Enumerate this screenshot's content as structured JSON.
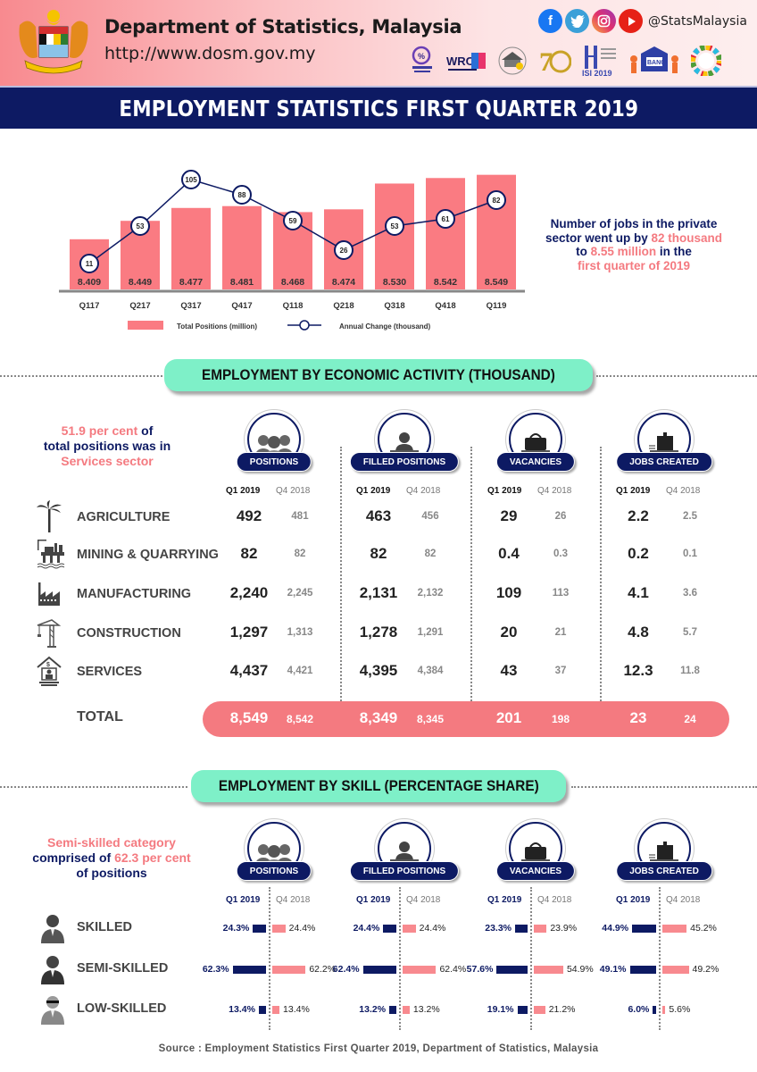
{
  "header": {
    "dept_name": "Department of Statistics, Malaysia",
    "url": "http://www.dosm.gov.my",
    "social_handle": "@StatsMalaysia",
    "social_icons": [
      "facebook-icon",
      "twitter-icon",
      "instagram-icon",
      "youtube-icon"
    ],
    "logos": [
      "Hari Statistik Negara",
      "WRC 2019",
      "MyCensus",
      "70 years",
      "ISI 2019",
      "Banci Malaysia",
      "SDG"
    ],
    "title": "EMPLOYMENT STATISTICS FIRST QUARTER 2019"
  },
  "colors": {
    "navy": "#0d1a63",
    "pink": "#f47a80",
    "mint": "#7ef0c8"
  },
  "chart_data": {
    "type": "bar",
    "categories": [
      "Q117",
      "Q217",
      "Q317",
      "Q417",
      "Q118",
      "Q218",
      "Q318",
      "Q418",
      "Q119"
    ],
    "series": [
      {
        "name": "Total Positions (million)",
        "type": "bar",
        "values": [
          8.409,
          8.449,
          8.477,
          8.481,
          8.468,
          8.474,
          8.53,
          8.542,
          8.549
        ],
        "labels": [
          "8.409",
          "8.449",
          "8.477",
          "8.481",
          "8.468",
          "8.474",
          "8.530",
          "8.542",
          "8.549"
        ]
      },
      {
        "name": "Annual Change (thousand)",
        "type": "line",
        "values": [
          11,
          53,
          105,
          88,
          59,
          26,
          53,
          61,
          82
        ]
      }
    ],
    "legend": [
      "Total Positions (million)",
      "Annual Change (thousand)"
    ],
    "legend_position": "bottom",
    "ylim_bar": [
      8.3,
      8.56
    ]
  },
  "chart_note": {
    "line1": "Number of jobs in the private",
    "line2a": "sector went up by ",
    "line2b": "82 thousand",
    "line3a": "to ",
    "line3b": "8.55 million",
    "line3c": " in the",
    "line4": "first quarter of 2019"
  },
  "economic": {
    "section_title": "EMPLOYMENT BY ECONOMIC ACTIVITY (THOUSAND)",
    "intro_a": "51.9 per cent",
    "intro_b": " of",
    "intro_c": "total positions was in",
    "intro_d": "Services sector",
    "columns": [
      {
        "label": "POSITIONS",
        "q1": "Q1 2019",
        "q4": "Q4 2018",
        "icon": "people-group-icon"
      },
      {
        "label": "FILLED POSITIONS",
        "q1": "Q1 2019",
        "q4": "Q4 2018",
        "icon": "person-at-desk-icon"
      },
      {
        "label": "VACANCIES",
        "q1": "Q1 2019",
        "q4": "Q4 2018",
        "icon": "briefcase-desk-icon"
      },
      {
        "label": "JOBS CREATED",
        "q1": "Q1 2019",
        "q4": "Q4 2018",
        "icon": "new-job-desk-icon"
      }
    ],
    "rows": [
      {
        "label": "AGRICULTURE",
        "icon": "palm-tree-icon",
        "values": [
          [
            "492",
            "481"
          ],
          [
            "463",
            "456"
          ],
          [
            "29",
            "26"
          ],
          [
            "2.2",
            "2.5"
          ]
        ]
      },
      {
        "label": "MINING & QUARRYING",
        "icon": "oil-rig-icon",
        "values": [
          [
            "82",
            "82"
          ],
          [
            "82",
            "82"
          ],
          [
            "0.4",
            "0.3"
          ],
          [
            "0.2",
            "0.1"
          ]
        ]
      },
      {
        "label": "MANUFACTURING",
        "icon": "factory-icon",
        "values": [
          [
            "2,240",
            "2,245"
          ],
          [
            "2,131",
            "2,132"
          ],
          [
            "109",
            "113"
          ],
          [
            "4.1",
            "3.6"
          ]
        ]
      },
      {
        "label": "CONSTRUCTION",
        "icon": "crane-icon",
        "values": [
          [
            "1,297",
            "1,313"
          ],
          [
            "1,278",
            "1,291"
          ],
          [
            "20",
            "21"
          ],
          [
            "4.8",
            "5.7"
          ]
        ]
      },
      {
        "label": "SERVICES",
        "icon": "services-house-icon",
        "values": [
          [
            "4,437",
            "4,421"
          ],
          [
            "4,395",
            "4,384"
          ],
          [
            "43",
            "37"
          ],
          [
            "12.3",
            "11.8"
          ]
        ]
      }
    ],
    "total": {
      "label": "TOTAL",
      "values": [
        [
          "8,549",
          "8,542"
        ],
        [
          "8,349",
          "8,345"
        ],
        [
          "201",
          "198"
        ],
        [
          "23",
          "24"
        ]
      ]
    }
  },
  "skill": {
    "section_title": "EMPLOYMENT BY SKILL (PERCENTAGE SHARE)",
    "intro_a": "Semi-skilled category",
    "intro_b": "comprised of ",
    "intro_c": "62.3 per cent",
    "intro_d": "of positions",
    "columns": [
      {
        "label": "POSITIONS",
        "q1": "Q1 2019",
        "q4": "Q4 2018"
      },
      {
        "label": "FILLED POSITIONS",
        "q1": "Q1 2019",
        "q4": "Q4 2018"
      },
      {
        "label": "VACANCIES",
        "q1": "Q1 2019",
        "q4": "Q4 2018"
      },
      {
        "label": "JOBS CREATED",
        "q1": "Q1 2019",
        "q4": "Q4 2018"
      }
    ],
    "rows": [
      {
        "label": "SKILLED",
        "icon": "skilled-worker-icon",
        "values": [
          [
            24.3,
            24.4
          ],
          [
            24.4,
            24.4
          ],
          [
            23.3,
            23.9
          ],
          [
            44.9,
            45.2
          ]
        ],
        "labels": [
          [
            "24.3%",
            "24.4%"
          ],
          [
            "24.4%",
            "24.4%"
          ],
          [
            "23.3%",
            "23.9%"
          ],
          [
            "44.9%",
            "45.2%"
          ]
        ]
      },
      {
        "label": "SEMI-SKILLED",
        "icon": "semi-skilled-worker-icon",
        "values": [
          [
            62.3,
            62.2
          ],
          [
            62.4,
            62.4
          ],
          [
            57.6,
            54.9
          ],
          [
            49.1,
            49.2
          ]
        ],
        "labels": [
          [
            "62.3%",
            "62.2%"
          ],
          [
            "62.4%",
            "62.4%"
          ],
          [
            "57.6%",
            "54.9%"
          ],
          [
            "49.1%",
            "49.2%"
          ]
        ]
      },
      {
        "label": "LOW-SKILLED",
        "icon": "low-skilled-worker-icon",
        "values": [
          [
            13.4,
            13.4
          ],
          [
            13.2,
            13.2
          ],
          [
            19.1,
            21.2
          ],
          [
            6.0,
            5.6
          ]
        ],
        "labels": [
          [
            "13.4%",
            "13.4%"
          ],
          [
            "13.2%",
            "13.2%"
          ],
          [
            "19.1%",
            "21.2%"
          ],
          [
            "6.0%",
            "5.6%"
          ]
        ]
      }
    ]
  },
  "source": "Source : Employment Statistics First Quarter 2019, Department of Statistics, Malaysia"
}
